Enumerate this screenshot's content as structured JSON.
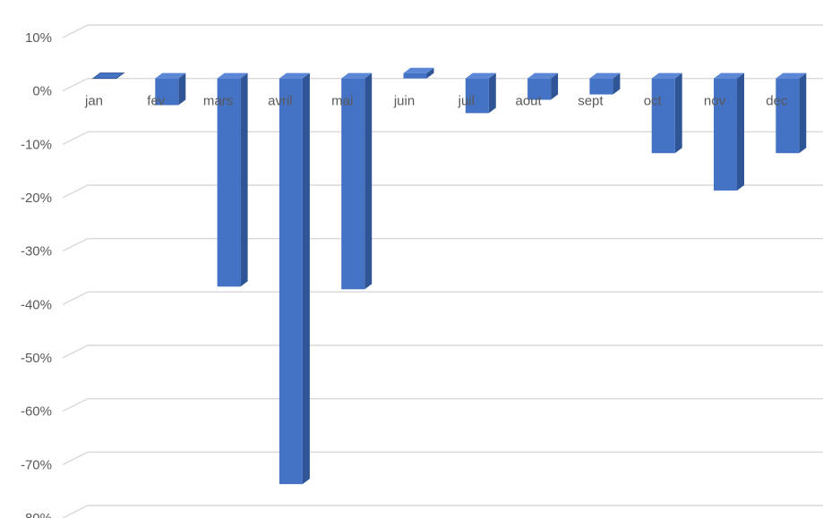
{
  "chart_data": {
    "type": "bar",
    "style": "3d-column",
    "title": "",
    "xlabel": "",
    "ylabel": "",
    "categories": [
      "jan",
      "fev",
      "mars",
      "avril",
      "mai",
      "juin",
      "juil",
      "aout",
      "sept",
      "oct",
      "nov",
      "dec"
    ],
    "series": [
      {
        "values": [
          0,
          -5,
          -39,
          -76,
          -39.5,
          1,
          -6.5,
          -4,
          -3,
          -14,
          -21,
          -14
        ]
      }
    ],
    "y_ticks": [
      "10%",
      "0%",
      "-10%",
      "-20%",
      "-30%",
      "-40%",
      "-50%",
      "-60%",
      "-70%",
      "-80%"
    ],
    "ylim": [
      -80,
      10
    ],
    "y_unit": "%",
    "grid": true,
    "legend": "none",
    "colors": {
      "bar_front": "#4472c4",
      "bar_side": "#2f5597",
      "bar_top": "#5b87d6",
      "grid": "#d9d9d9",
      "text": "#595959"
    }
  }
}
